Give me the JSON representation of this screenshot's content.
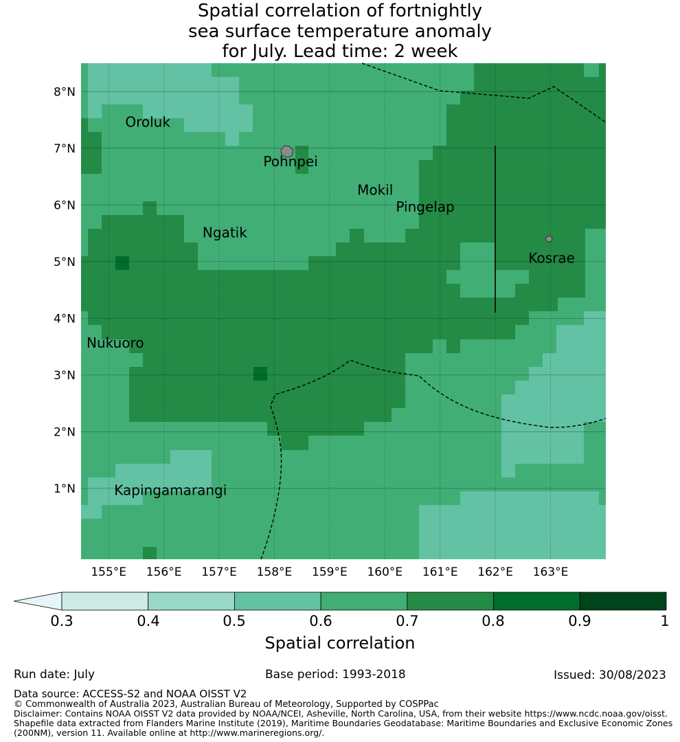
{
  "title_lines": [
    "Spatial correlation of fortnightly",
    "sea surface temperature anomaly",
    "for July. Lead time: 2 week"
  ],
  "map": {
    "lat_labels": [
      "8°N",
      "7°N",
      "6°N",
      "5°N",
      "4°N",
      "3°N",
      "2°N",
      "1°N"
    ],
    "lat_values": [
      8,
      7,
      6,
      5,
      4,
      3,
      2,
      1
    ],
    "lon_labels": [
      "155°E",
      "156°E",
      "157°E",
      "158°E",
      "159°E",
      "160°E",
      "161°E",
      "162°E",
      "163°E"
    ],
    "lon_values": [
      155,
      156,
      157,
      158,
      159,
      160,
      161,
      162,
      163
    ],
    "extent": {
      "lon_min": 154.5,
      "lon_max": 164.0,
      "lat_min": -0.25,
      "lat_max": 8.5
    },
    "places": [
      {
        "name": "Oroluk",
        "lon": 155.3,
        "lat": 7.55
      },
      {
        "name": "Pohnpei",
        "lon": 157.8,
        "lat": 6.85
      },
      {
        "name": "Mokil",
        "lon": 159.5,
        "lat": 6.35
      },
      {
        "name": "Pingelap",
        "lon": 160.2,
        "lat": 6.05
      },
      {
        "name": "Ngatik",
        "lon": 156.7,
        "lat": 5.6
      },
      {
        "name": "Kosrae",
        "lon": 162.6,
        "lat": 5.15
      },
      {
        "name": "Nukuoro",
        "lon": 154.6,
        "lat": 3.65
      },
      {
        "name": "Kapingamarangi",
        "lon": 155.1,
        "lat": 1.05
      }
    ]
  },
  "colorbar": {
    "title": "Spatial correlation",
    "ticks": [
      "0.3",
      "0.4",
      "0.5",
      "0.6",
      "0.7",
      "0.8",
      "0.9",
      "1"
    ],
    "colors": [
      "#cdebe3",
      "#99d8c9",
      "#62c2a3",
      "#41ae76",
      "#238b45",
      "#006d2c",
      "#00441b"
    ],
    "under_color": "#e5f5f9"
  },
  "footer": {
    "run_date": "Run date: July",
    "base_period": "Base period: 1993-2018",
    "issued": "Issued: 30/08/2023",
    "data_source": "Data source: ACCESS-S2 and NOAA OISST V2",
    "copyright": "© Commonwealth of Australia 2023, Australian Bureau of Meteorology, Supported by COSPPac",
    "disclaimer_1": "Disclaimer: Contains NOAA OISST V2 data provided by NOAA/NCEI, Asheville, North Carolina, USA, from their website https://www.ncdc.noaa.gov/oisst.",
    "disclaimer_2": "Shapefile data extracted from Flanders Marine Institute (2019), Maritime Boundaries Geodatabase: Maritime Boundaries and Exclusive Economic Zones",
    "disclaimer_3": "(200NM), version 11. Available online at http://www.marineregions.org/."
  }
}
